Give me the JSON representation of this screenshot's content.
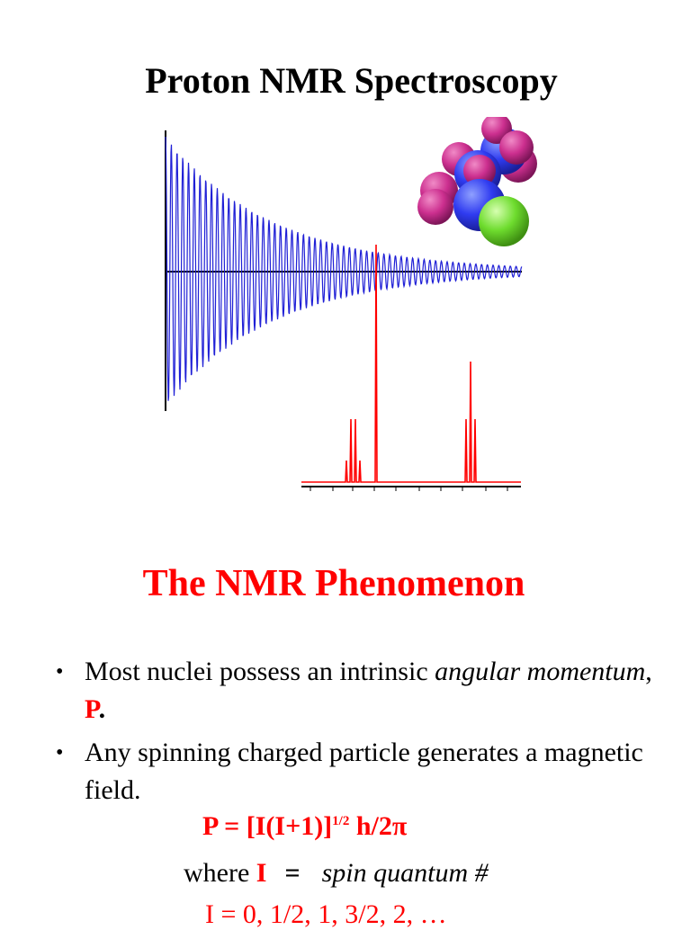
{
  "slide": {
    "title": "Proton NMR Spectroscopy",
    "heading": "The NMR Phenomenon",
    "bullet1": {
      "a": "Most nuclei possess an intrinsic ",
      "b": "angular momentum",
      "c": ", ",
      "d": "P",
      "e": "."
    },
    "bullet2": "Any spinning charged particle generates a magnetic field.",
    "formula": {
      "a": "P = [I(I+1)]",
      "sup": "1/2",
      "b": " h/2π"
    },
    "where": {
      "word": "where ",
      "symbol": "I",
      "eq": "=",
      "desc": "spin quantum #"
    },
    "i_values": "I = 0, 1/2, 1, 3/2, 2, …"
  },
  "colors": {
    "fid": "#1f1fd6",
    "spectrum": "#ff0000",
    "heading": "#ff0000",
    "atom_blue": "#2f3bf0",
    "atom_magenta": "#cc2f8f",
    "atom_green": "#6edc2e"
  },
  "icons": {
    "molecule": "space-filling-molecule-icon",
    "bullet": "bullet-dot-icon"
  }
}
